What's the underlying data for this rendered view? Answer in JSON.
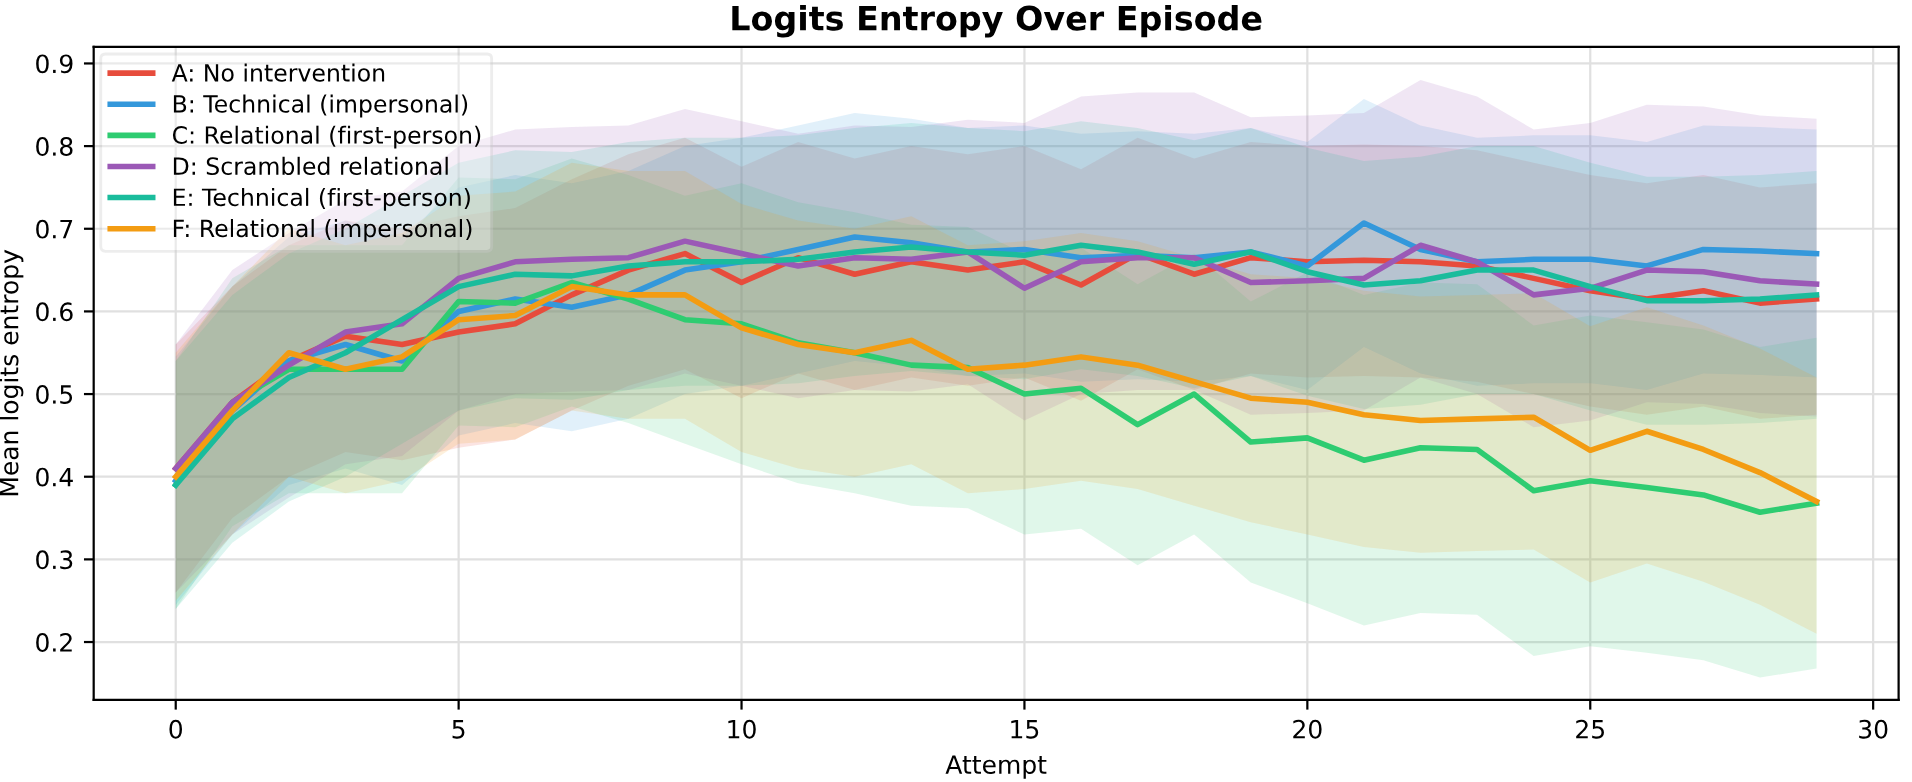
{
  "chart_data": {
    "type": "line",
    "title": "Logits Entropy Over Episode",
    "xlabel": "Attempt",
    "ylabel": "Mean logits entropy",
    "x": [
      0,
      1,
      2,
      3,
      4,
      5,
      6,
      7,
      8,
      9,
      10,
      11,
      12,
      13,
      14,
      15,
      16,
      17,
      18,
      19,
      20,
      21,
      22,
      23,
      24,
      25,
      26,
      27,
      28,
      29
    ],
    "xlim": [
      -1.45,
      30.45
    ],
    "ylim": [
      0.13,
      0.92
    ],
    "xticks": [
      0,
      5,
      10,
      15,
      20,
      25,
      30
    ],
    "yticks": [
      0.2,
      0.3,
      0.4,
      0.5,
      0.6,
      0.7,
      0.8,
      0.9
    ],
    "grid": true,
    "legend": "top left",
    "marker": "none",
    "line_style": "solid",
    "series": [
      {
        "name": "A: No intervention",
        "color": "#e74c3c",
        "values": [
          0.41,
          0.49,
          0.54,
          0.57,
          0.56,
          0.575,
          0.585,
          0.62,
          0.65,
          0.67,
          0.635,
          0.665,
          0.645,
          0.66,
          0.65,
          0.66,
          0.632,
          0.67,
          0.645,
          0.665,
          0.66,
          0.662,
          0.66,
          0.655,
          0.64,
          0.625,
          0.615,
          0.625,
          0.61,
          0.615
        ],
        "upper": [
          0.56,
          0.63,
          0.68,
          0.71,
          0.7,
          0.715,
          0.725,
          0.76,
          0.79,
          0.81,
          0.775,
          0.805,
          0.785,
          0.8,
          0.79,
          0.8,
          0.772,
          0.81,
          0.785,
          0.805,
          0.8,
          0.802,
          0.8,
          0.795,
          0.78,
          0.765,
          0.755,
          0.765,
          0.75,
          0.755
        ],
        "lower": [
          0.26,
          0.35,
          0.4,
          0.43,
          0.42,
          0.435,
          0.445,
          0.48,
          0.51,
          0.53,
          0.495,
          0.525,
          0.505,
          0.52,
          0.51,
          0.52,
          0.492,
          0.53,
          0.505,
          0.525,
          0.52,
          0.522,
          0.52,
          0.515,
          0.5,
          0.485,
          0.475,
          0.485,
          0.47,
          0.475
        ]
      },
      {
        "name": "B: Technical (impersonal)",
        "color": "#3498db",
        "values": [
          0.395,
          0.48,
          0.54,
          0.56,
          0.54,
          0.6,
          0.615,
          0.605,
          0.62,
          0.65,
          0.66,
          0.675,
          0.69,
          0.683,
          0.672,
          0.675,
          0.665,
          0.668,
          0.665,
          0.672,
          0.655,
          0.707,
          0.675,
          0.66,
          0.663,
          0.663,
          0.655,
          0.675,
          0.673,
          0.67
        ],
        "upper": [
          0.545,
          0.63,
          0.69,
          0.71,
          0.69,
          0.75,
          0.765,
          0.755,
          0.77,
          0.8,
          0.81,
          0.825,
          0.84,
          0.833,
          0.822,
          0.825,
          0.815,
          0.818,
          0.815,
          0.822,
          0.805,
          0.857,
          0.825,
          0.81,
          0.813,
          0.813,
          0.805,
          0.825,
          0.823,
          0.82
        ],
        "lower": [
          0.245,
          0.33,
          0.39,
          0.41,
          0.39,
          0.45,
          0.465,
          0.455,
          0.47,
          0.5,
          0.51,
          0.525,
          0.54,
          0.533,
          0.522,
          0.525,
          0.515,
          0.518,
          0.515,
          0.522,
          0.505,
          0.557,
          0.525,
          0.51,
          0.513,
          0.513,
          0.505,
          0.525,
          0.523,
          0.52
        ]
      },
      {
        "name": "C: Relational (first-person)",
        "color": "#2ecc71",
        "values": [
          0.39,
          0.49,
          0.53,
          0.53,
          0.53,
          0.612,
          0.61,
          0.635,
          0.615,
          0.59,
          0.585,
          0.562,
          0.55,
          0.535,
          0.532,
          0.5,
          0.507,
          0.463,
          0.5,
          0.442,
          0.447,
          0.42,
          0.435,
          0.433,
          0.383,
          0.395,
          0.387,
          0.378,
          0.357,
          0.368
        ],
        "upper": [
          0.54,
          0.64,
          0.68,
          0.68,
          0.68,
          0.762,
          0.76,
          0.785,
          0.765,
          0.74,
          0.755,
          0.732,
          0.72,
          0.705,
          0.702,
          0.67,
          0.677,
          0.633,
          0.67,
          0.612,
          0.647,
          0.62,
          0.635,
          0.633,
          0.583,
          0.595,
          0.587,
          0.578,
          0.557,
          0.568
        ],
        "lower": [
          0.24,
          0.34,
          0.38,
          0.38,
          0.38,
          0.462,
          0.46,
          0.485,
          0.465,
          0.44,
          0.415,
          0.392,
          0.38,
          0.365,
          0.362,
          0.33,
          0.337,
          0.293,
          0.33,
          0.272,
          0.247,
          0.22,
          0.235,
          0.233,
          0.183,
          0.195,
          0.187,
          0.178,
          0.157,
          0.168
        ]
      },
      {
        "name": "D: Scrambled relational",
        "color": "#9b59b6",
        "values": [
          0.41,
          0.49,
          0.535,
          0.575,
          0.585,
          0.64,
          0.66,
          0.663,
          0.665,
          0.685,
          0.67,
          0.655,
          0.665,
          0.663,
          0.672,
          0.628,
          0.66,
          0.665,
          0.665,
          0.635,
          0.637,
          0.64,
          0.68,
          0.66,
          0.62,
          0.628,
          0.65,
          0.648,
          0.637,
          0.633
        ],
        "upper": [
          0.56,
          0.65,
          0.695,
          0.735,
          0.745,
          0.8,
          0.82,
          0.823,
          0.825,
          0.845,
          0.83,
          0.815,
          0.825,
          0.823,
          0.832,
          0.828,
          0.86,
          0.865,
          0.865,
          0.835,
          0.837,
          0.84,
          0.88,
          0.86,
          0.82,
          0.828,
          0.85,
          0.848,
          0.837,
          0.833
        ],
        "lower": [
          0.26,
          0.33,
          0.375,
          0.415,
          0.425,
          0.48,
          0.5,
          0.503,
          0.505,
          0.525,
          0.51,
          0.495,
          0.505,
          0.503,
          0.512,
          0.468,
          0.5,
          0.505,
          0.505,
          0.475,
          0.477,
          0.48,
          0.52,
          0.5,
          0.46,
          0.468,
          0.49,
          0.488,
          0.477,
          0.473
        ]
      },
      {
        "name": "E: Technical (first-person)",
        "color": "#1abc9c",
        "values": [
          0.39,
          0.47,
          0.52,
          0.55,
          0.59,
          0.63,
          0.645,
          0.643,
          0.655,
          0.66,
          0.66,
          0.663,
          0.672,
          0.678,
          0.672,
          0.668,
          0.68,
          0.672,
          0.657,
          0.672,
          0.648,
          0.632,
          0.637,
          0.65,
          0.65,
          0.63,
          0.613,
          0.613,
          0.615,
          0.62
        ],
        "upper": [
          0.54,
          0.62,
          0.67,
          0.7,
          0.74,
          0.78,
          0.795,
          0.793,
          0.805,
          0.81,
          0.81,
          0.813,
          0.822,
          0.828,
          0.822,
          0.818,
          0.83,
          0.822,
          0.807,
          0.822,
          0.798,
          0.782,
          0.787,
          0.8,
          0.8,
          0.78,
          0.763,
          0.763,
          0.765,
          0.77
        ],
        "lower": [
          0.24,
          0.32,
          0.37,
          0.4,
          0.44,
          0.48,
          0.495,
          0.493,
          0.505,
          0.51,
          0.51,
          0.513,
          0.522,
          0.528,
          0.522,
          0.518,
          0.53,
          0.522,
          0.507,
          0.522,
          0.498,
          0.482,
          0.487,
          0.5,
          0.5,
          0.48,
          0.463,
          0.463,
          0.465,
          0.47
        ]
      },
      {
        "name": "F: Relational (impersonal)",
        "color": "#f39c12",
        "values": [
          0.4,
          0.48,
          0.55,
          0.53,
          0.545,
          0.59,
          0.595,
          0.63,
          0.62,
          0.62,
          0.58,
          0.56,
          0.55,
          0.565,
          0.53,
          0.535,
          0.545,
          0.535,
          0.515,
          0.495,
          0.49,
          0.475,
          0.468,
          0.47,
          0.472,
          0.432,
          0.455,
          0.433,
          0.405,
          0.37
        ],
        "upper": [
          0.55,
          0.63,
          0.7,
          0.68,
          0.695,
          0.74,
          0.745,
          0.78,
          0.77,
          0.77,
          0.73,
          0.71,
          0.7,
          0.715,
          0.68,
          0.685,
          0.695,
          0.685,
          0.665,
          0.645,
          0.64,
          0.625,
          0.618,
          0.62,
          0.622,
          0.582,
          0.605,
          0.583,
          0.555,
          0.52
        ],
        "lower": [
          0.25,
          0.33,
          0.4,
          0.38,
          0.395,
          0.44,
          0.445,
          0.48,
          0.47,
          0.47,
          0.43,
          0.41,
          0.4,
          0.415,
          0.38,
          0.385,
          0.395,
          0.385,
          0.365,
          0.345,
          0.33,
          0.315,
          0.308,
          0.31,
          0.312,
          0.272,
          0.295,
          0.273,
          0.245,
          0.21
        ]
      }
    ]
  }
}
